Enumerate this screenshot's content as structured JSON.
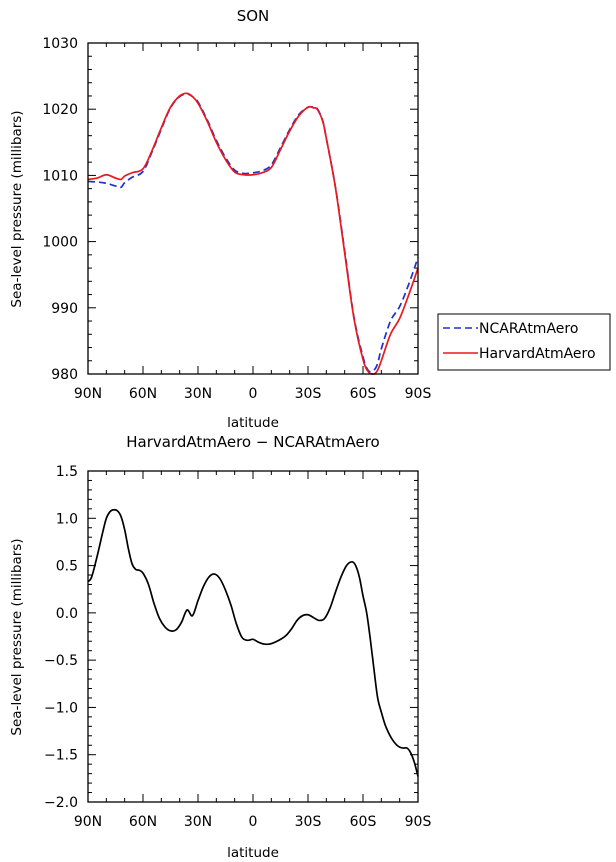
{
  "chart_data": [
    {
      "type": "line",
      "title": "SON",
      "xlabel": "latitude",
      "ylabel": "Sea-level pressure (millibars)",
      "xticks": [
        "90N",
        "60N",
        "30N",
        "0",
        "30S",
        "60S",
        "90S"
      ],
      "yticks": [
        "980",
        "990",
        "1000",
        "1010",
        "1020",
        "1030"
      ],
      "xlim": [
        90,
        -90
      ],
      "ylim": [
        980,
        1030
      ],
      "legend": "right",
      "series": [
        {
          "name": "NCARAtmAero",
          "color": "#1f2fd6",
          "style": "dashed",
          "x": [
            90,
            85,
            80,
            75,
            72,
            70,
            66,
            60,
            55,
            50,
            45,
            40,
            36,
            33,
            30,
            25,
            20,
            15,
            10,
            5,
            0,
            -5,
            -10,
            -15,
            -20,
            -25,
            -30,
            -33,
            -35,
            -38,
            -40,
            -45,
            -50,
            -55,
            -60,
            -63,
            -66,
            -68,
            -70,
            -75,
            -80,
            -85,
            -90
          ],
          "values": [
            1009.1,
            1009.0,
            1008.8,
            1008.4,
            1008.2,
            1008.9,
            1009.7,
            1010.6,
            1013.6,
            1017.0,
            1020.2,
            1021.9,
            1022.3,
            1021.9,
            1021.1,
            1018.4,
            1015.3,
            1012.7,
            1010.8,
            1010.3,
            1010.4,
            1010.7,
            1011.6,
            1014.2,
            1016.9,
            1019.2,
            1020.3,
            1020.3,
            1020.1,
            1018.3,
            1015.6,
            1008.2,
            998.6,
            988.7,
            982.6,
            980.5,
            980.6,
            981.6,
            983.8,
            988.0,
            990.2,
            993.6,
            997.6
          ]
        },
        {
          "name": "HarvardAtmAero",
          "color": "#e8181d",
          "style": "solid",
          "x": [
            90,
            85,
            80,
            75,
            72,
            70,
            66,
            60,
            55,
            50,
            45,
            40,
            36,
            33,
            30,
            25,
            20,
            15,
            10,
            5,
            0,
            -5,
            -10,
            -15,
            -20,
            -25,
            -30,
            -33,
            -35,
            -38,
            -40,
            -45,
            -50,
            -55,
            -60,
            -63,
            -66,
            -68,
            -70,
            -75,
            -80,
            -85,
            -90
          ],
          "values": [
            1009.4,
            1009.6,
            1010.1,
            1009.6,
            1009.4,
            1009.9,
            1010.4,
            1011.0,
            1013.8,
            1017.2,
            1020.3,
            1022.0,
            1022.4,
            1021.9,
            1020.9,
            1018.2,
            1015.0,
            1012.4,
            1010.5,
            1010.1,
            1010.1,
            1010.4,
            1011.2,
            1013.9,
            1016.7,
            1019.0,
            1020.3,
            1020.2,
            1020.0,
            1018.2,
            1015.6,
            1008.1,
            998.3,
            988.5,
            982.2,
            980.3,
            980.0,
            980.6,
            982.0,
            986.0,
            988.4,
            992.0,
            996.0
          ]
        }
      ]
    },
    {
      "type": "line",
      "title": "HarvardAtmAero − NCARAtmAero",
      "xlabel": "latitude",
      "ylabel": "Sea-level pressure (millibars)",
      "xticks": [
        "90N",
        "60N",
        "30N",
        "0",
        "30S",
        "60S",
        "90S"
      ],
      "yticks": [
        "1.5",
        "1.0",
        "0.5",
        "0.0",
        "−0.5",
        "−1.0",
        "−1.5",
        "−2.0"
      ],
      "xlim": [
        90,
        -90
      ],
      "ylim": [
        -2.0,
        1.5
      ],
      "series": [
        {
          "color": "#000000",
          "style": "solid",
          "x": [
            90,
            88,
            85,
            82,
            80,
            78,
            76,
            74,
            72,
            70,
            68,
            66,
            64,
            62,
            60,
            57,
            54,
            51,
            48,
            45,
            42,
            39,
            36,
            33,
            30,
            27,
            24,
            21,
            18,
            15,
            12,
            9,
            6,
            3,
            0,
            -3,
            -6,
            -9,
            -12,
            -15,
            -18,
            -21,
            -24,
            -27,
            -30,
            -33,
            -36,
            -39,
            -42,
            -45,
            -48,
            -51,
            -54,
            -56,
            -58,
            -60,
            -62,
            -64,
            -66,
            -68,
            -70,
            -72,
            -74,
            -76,
            -78,
            -80,
            -82,
            -84,
            -86,
            -88,
            -90
          ],
          "values": [
            0.33,
            0.38,
            0.6,
            0.85,
            1.0,
            1.07,
            1.09,
            1.08,
            1.02,
            0.88,
            0.68,
            0.52,
            0.46,
            0.45,
            0.42,
            0.3,
            0.1,
            -0.06,
            -0.15,
            -0.19,
            -0.18,
            -0.1,
            0.03,
            -0.03,
            0.13,
            0.28,
            0.38,
            0.41,
            0.36,
            0.24,
            0.08,
            -0.12,
            -0.26,
            -0.29,
            -0.28,
            -0.31,
            -0.33,
            -0.33,
            -0.31,
            -0.28,
            -0.24,
            -0.17,
            -0.08,
            -0.03,
            -0.02,
            -0.05,
            -0.08,
            -0.06,
            0.05,
            0.22,
            0.38,
            0.5,
            0.54,
            0.5,
            0.38,
            0.18,
            0.0,
            -0.28,
            -0.6,
            -0.9,
            -1.05,
            -1.18,
            -1.27,
            -1.34,
            -1.39,
            -1.42,
            -1.43,
            -1.43,
            -1.48,
            -1.58,
            -1.73
          ]
        }
      ]
    }
  ]
}
